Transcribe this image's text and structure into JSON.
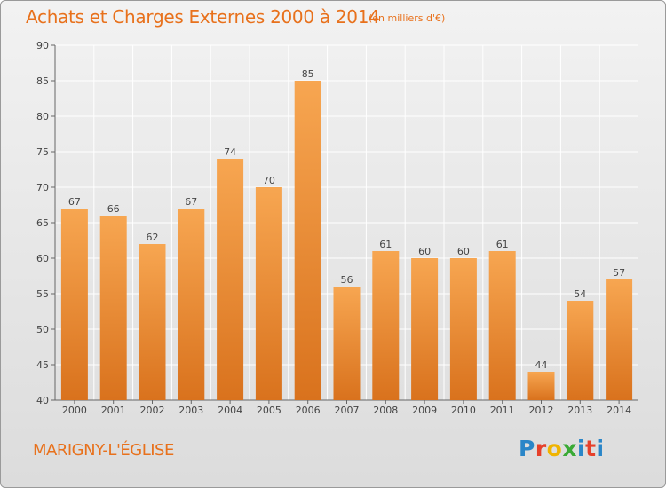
{
  "header": {
    "title": "Achats et Charges Externes 2000 à 2014",
    "unit_note": "(en milliers d'€)"
  },
  "footer": {
    "place": "MARIGNY-L'ÉGLISE",
    "logo_text": "Proxiti"
  },
  "colors": {
    "title": "#e8711c",
    "bar_light": "#f7a651",
    "bar_dark": "#d9721d",
    "grid": "#ffffff"
  },
  "chart_data": {
    "type": "bar",
    "title": "Achats et Charges Externes 2000 à 2014",
    "subtitle": "(en milliers d'€)",
    "xlabel": "",
    "ylabel": "",
    "categories": [
      "2000",
      "2001",
      "2002",
      "2003",
      "2004",
      "2005",
      "2006",
      "2007",
      "2008",
      "2009",
      "2010",
      "2011",
      "2012",
      "2013",
      "2014"
    ],
    "values": [
      67,
      66,
      62,
      67,
      74,
      70,
      85,
      56,
      61,
      60,
      60,
      61,
      44,
      54,
      57
    ],
    "ylim": [
      40,
      90
    ],
    "yticks": [
      40,
      45,
      50,
      55,
      60,
      65,
      70,
      75,
      80,
      85,
      90
    ],
    "grid": true,
    "data_labels": true
  }
}
